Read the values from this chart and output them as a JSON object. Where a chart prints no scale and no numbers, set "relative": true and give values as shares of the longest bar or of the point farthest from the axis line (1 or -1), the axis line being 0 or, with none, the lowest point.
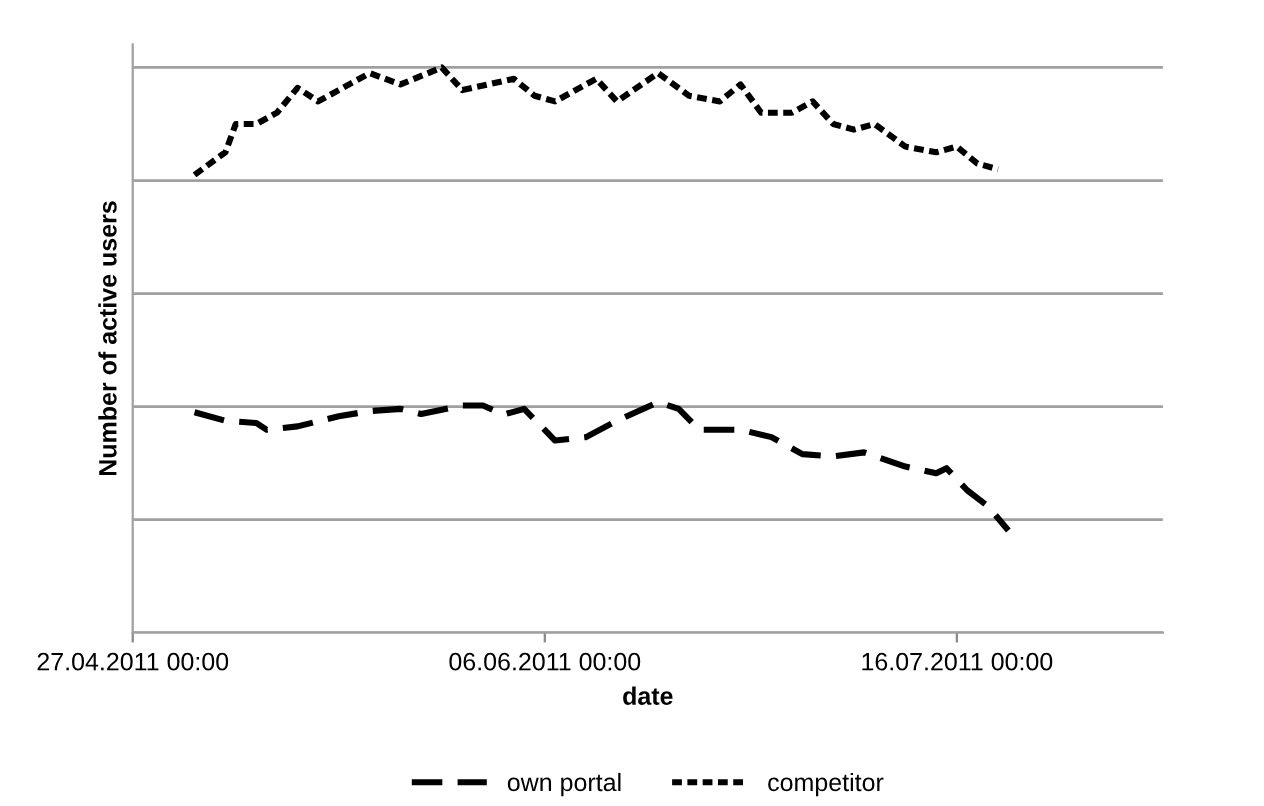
{
  "chart_data": {
    "type": "line",
    "xlabel": "date",
    "ylabel": "Number of active users",
    "relative": true,
    "grid": "y",
    "legend": "bottom",
    "tick_labels": "x",
    "xlim": [
      "2011-04-27",
      "2011-08-05"
    ],
    "xticks": [
      {
        "value": "2011-04-27",
        "label": "27.04.2011 00:00"
      },
      {
        "value": "2011-06-06",
        "label": "06.06.2011 00:00"
      },
      {
        "value": "2011-07-16",
        "label": "16.07.2011 00:00"
      }
    ],
    "series": [
      {
        "name": "own portal",
        "color": "#000000",
        "line_style": "dashed",
        "x": [
          "2011-05-03",
          "2011-05-06",
          "2011-05-09",
          "2011-05-10",
          "2011-05-13",
          "2011-05-17",
          "2011-05-20",
          "2011-05-23",
          "2011-05-25",
          "2011-05-29",
          "2011-05-31",
          "2011-06-02",
          "2011-06-04",
          "2011-06-07",
          "2011-06-10",
          "2011-06-13",
          "2011-06-17",
          "2011-06-19",
          "2011-06-21",
          "2011-06-25",
          "2011-06-28",
          "2011-07-01",
          "2011-07-04",
          "2011-07-07",
          "2011-07-11",
          "2011-07-14",
          "2011-07-15",
          "2011-07-17",
          "2011-07-19",
          "2011-07-21"
        ],
        "values": [
          0.39,
          0.375,
          0.371,
          0.359,
          0.365,
          0.383,
          0.392,
          0.396,
          0.387,
          0.402,
          0.402,
          0.386,
          0.396,
          0.34,
          0.346,
          0.375,
          0.408,
          0.396,
          0.359,
          0.359,
          0.346,
          0.316,
          0.312,
          0.319,
          0.294,
          0.282,
          0.291,
          0.252,
          0.224,
          0.181
        ]
      },
      {
        "name": "competitor",
        "color": "#000000",
        "line_style": "dotted",
        "x": [
          "2011-05-03",
          "2011-05-06",
          "2011-05-07",
          "2011-05-09",
          "2011-05-11",
          "2011-05-13",
          "2011-05-15",
          "2011-05-17",
          "2011-05-20",
          "2011-05-23",
          "2011-05-27",
          "2011-05-29",
          "2011-06-03",
          "2011-06-05",
          "2011-06-07",
          "2011-06-11",
          "2011-06-13",
          "2011-06-17",
          "2011-06-20",
          "2011-06-23",
          "2011-06-25",
          "2011-06-27",
          "2011-06-30",
          "2011-07-02",
          "2011-07-04",
          "2011-07-06",
          "2011-07-08",
          "2011-07-11",
          "2011-07-14",
          "2011-07-16",
          "2011-07-18",
          "2011-07-20"
        ],
        "values": [
          0.81,
          0.85,
          0.9,
          0.9,
          0.92,
          0.964,
          0.94,
          0.96,
          0.99,
          0.97,
          1.0,
          0.96,
          0.98,
          0.95,
          0.94,
          0.98,
          0.94,
          0.99,
          0.95,
          0.94,
          0.97,
          0.92,
          0.92,
          0.94,
          0.9,
          0.89,
          0.9,
          0.86,
          0.85,
          0.86,
          0.83,
          0.82
        ]
      }
    ]
  }
}
